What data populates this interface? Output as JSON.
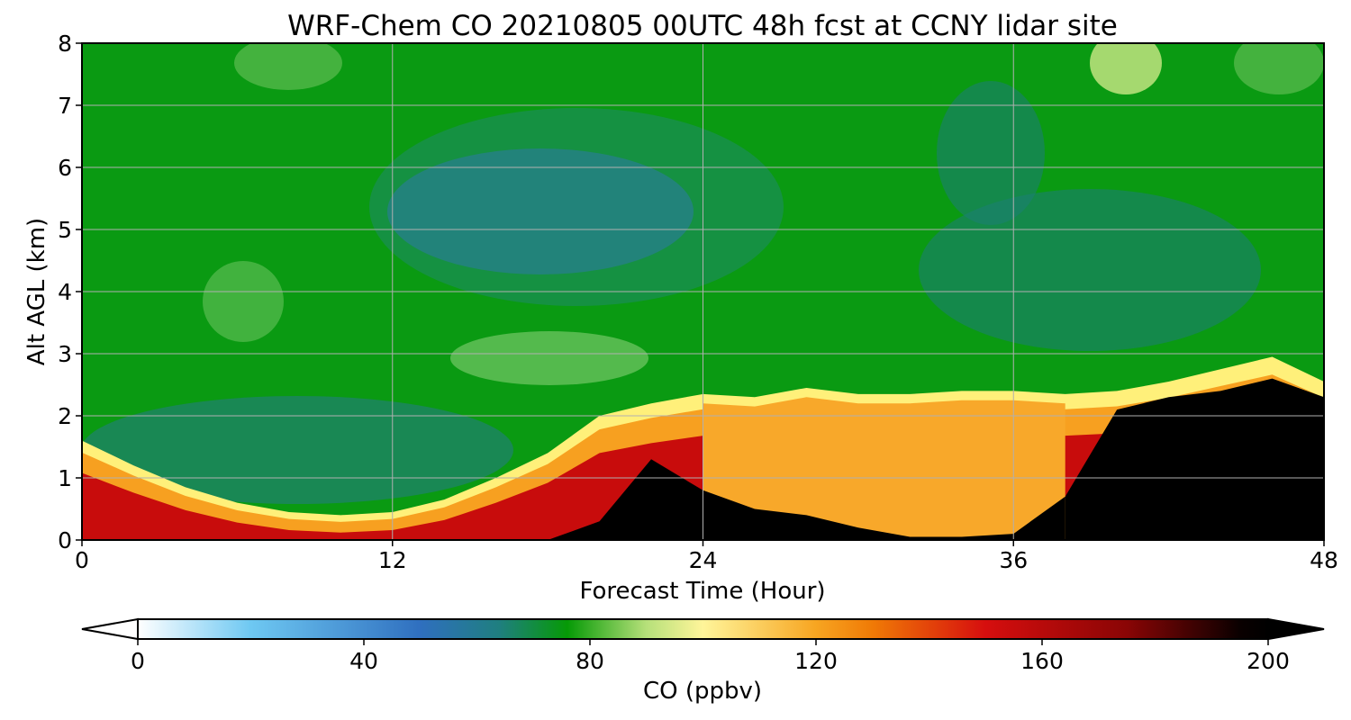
{
  "chart_data": {
    "type": "heatmap",
    "title": "WRF-Chem CO  20210805 00UTC 48h fcst at CCNY lidar site",
    "xlabel": "Forecast Time (Hour)",
    "ylabel": "Alt AGL (km)",
    "xlim": [
      0,
      48
    ],
    "ylim": [
      0,
      8
    ],
    "xticks": [
      0,
      12,
      24,
      36,
      48
    ],
    "yticks": [
      0,
      1,
      2,
      3,
      4,
      5,
      6,
      7,
      8
    ],
    "grid": true,
    "colorbar": {
      "label": "CO  (ppbv)",
      "range": [
        0,
        200
      ],
      "ticks": [
        0,
        40,
        80,
        120,
        160,
        200
      ],
      "extend": "both",
      "orientation": "horizontal",
      "colormap_stops": [
        [
          0,
          "#ffffff"
        ],
        [
          20,
          "#6ec8f2"
        ],
        [
          50,
          "#2f6fbf"
        ],
        [
          64,
          "#1f7f7f"
        ],
        [
          76,
          "#069a06"
        ],
        [
          90,
          "#b6e07a"
        ],
        [
          100,
          "#fff59a"
        ],
        [
          120,
          "#f7a521"
        ],
        [
          130,
          "#f07a06"
        ],
        [
          150,
          "#d60e0e"
        ],
        [
          175,
          "#8a0505"
        ],
        [
          195,
          "#0a0000"
        ],
        [
          200,
          "#000000"
        ]
      ]
    },
    "surface_layer": {
      "description_note": "",
      "x": [
        0,
        2,
        4,
        6,
        8,
        10,
        12,
        14,
        16,
        18,
        20,
        22,
        24,
        26,
        28,
        30,
        32,
        34,
        36,
        38,
        40,
        42,
        44,
        46,
        48
      ],
      "top_km": [
        1.6,
        1.2,
        0.85,
        0.6,
        0.45,
        0.4,
        0.45,
        0.65,
        1.0,
        1.4,
        2.0,
        2.2,
        2.35,
        2.3,
        2.45,
        2.35,
        2.35,
        2.4,
        2.4,
        2.35,
        2.4,
        2.55,
        2.75,
        2.95,
        2.55
      ],
      "black_top_km": [
        0,
        0,
        0,
        0,
        0,
        0,
        0,
        0,
        0,
        0,
        0.3,
        1.3,
        0.8,
        0.5,
        0.4,
        0.2,
        0.05,
        0.05,
        0.1,
        0.7,
        2.1,
        2.3,
        2.4,
        2.6,
        2.3
      ]
    }
  }
}
